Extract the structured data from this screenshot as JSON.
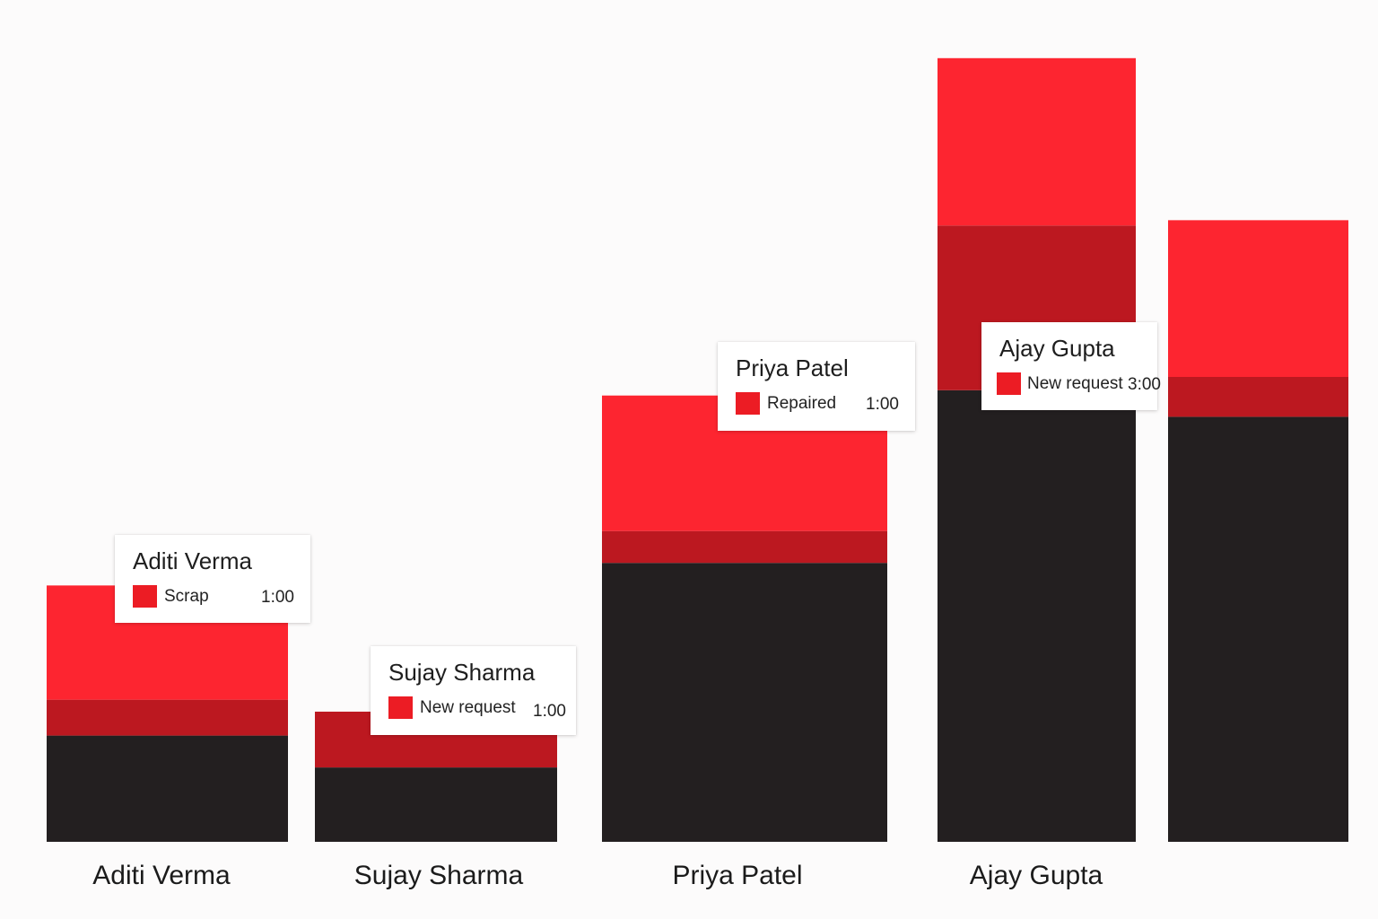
{
  "colors": {
    "bright_red": "#fd2530",
    "dark_red": "#bc1820",
    "black": "#231f20",
    "background": "#fcfbfb",
    "tooltip_swatch": "#ec1c24"
  },
  "chart_data": {
    "type": "bar",
    "stacked": true,
    "categories": [
      "Aditi Verma",
      "Sujay Sharma",
      "Priya Patel",
      "Ajay Gupta",
      ""
    ],
    "series": [
      {
        "values": [
          4.0,
          2.8,
          10.5,
          17.0,
          16.0
        ]
      },
      {
        "values": [
          1.35,
          2.1,
          1.2,
          6.2,
          1.5
        ]
      },
      {
        "values": [
          4.3,
          0.0,
          5.1,
          6.3,
          5.9
        ]
      }
    ],
    "ylim": [
      0,
      30
    ],
    "grid": false,
    "legend": "none"
  },
  "tooltips": [
    {
      "name": "Aditi Verma",
      "status": "Scrap",
      "time": "1:00"
    },
    {
      "name": "Sujay Sharma",
      "status": "New request",
      "time": "1:00"
    },
    {
      "name": "Priya Patel",
      "status": "Repaired",
      "time": "1:00"
    },
    {
      "name": "Ajay Gupta",
      "status": "New request",
      "time": "3:00"
    }
  ]
}
